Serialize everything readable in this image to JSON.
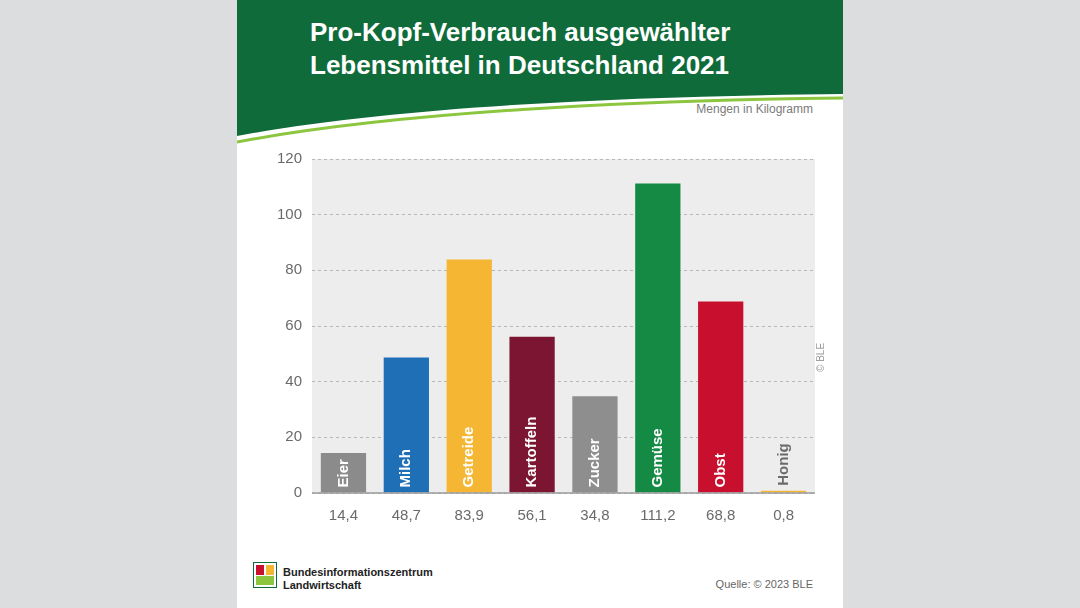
{
  "chart_data": {
    "type": "bar",
    "title": "Pro-Kopf-Verbrauch ausgewählter Lebensmittel in Deutschland 2021",
    "subtitle": "Mengen in Kilogramm",
    "categories": [
      "Eier",
      "Milch",
      "Getreide",
      "Kartoffeln",
      "Zucker",
      "Gemüse",
      "Obst",
      "Honig"
    ],
    "values": [
      14.4,
      48.7,
      83.9,
      56.1,
      34.8,
      111.2,
      68.8,
      0.8
    ],
    "value_labels": [
      "14,4",
      "48,7",
      "83,9",
      "56,1",
      "34,8",
      "111,2",
      "68,8",
      "0,8"
    ],
    "colors": [
      "#8b8b8b",
      "#1f6fb6",
      "#f5b733",
      "#7b1531",
      "#8e8e8e",
      "#148a44",
      "#c8102e",
      "#f5b733"
    ],
    "ylim": [
      0,
      120
    ],
    "yticks": [
      0,
      20,
      40,
      60,
      80,
      100,
      120
    ],
    "grid": true,
    "data_labels": true,
    "annotations": [
      "© BLE",
      "Bundesinformationszentrum Landwirtschaft",
      "Quelle: © 2023 BLE"
    ]
  }
}
